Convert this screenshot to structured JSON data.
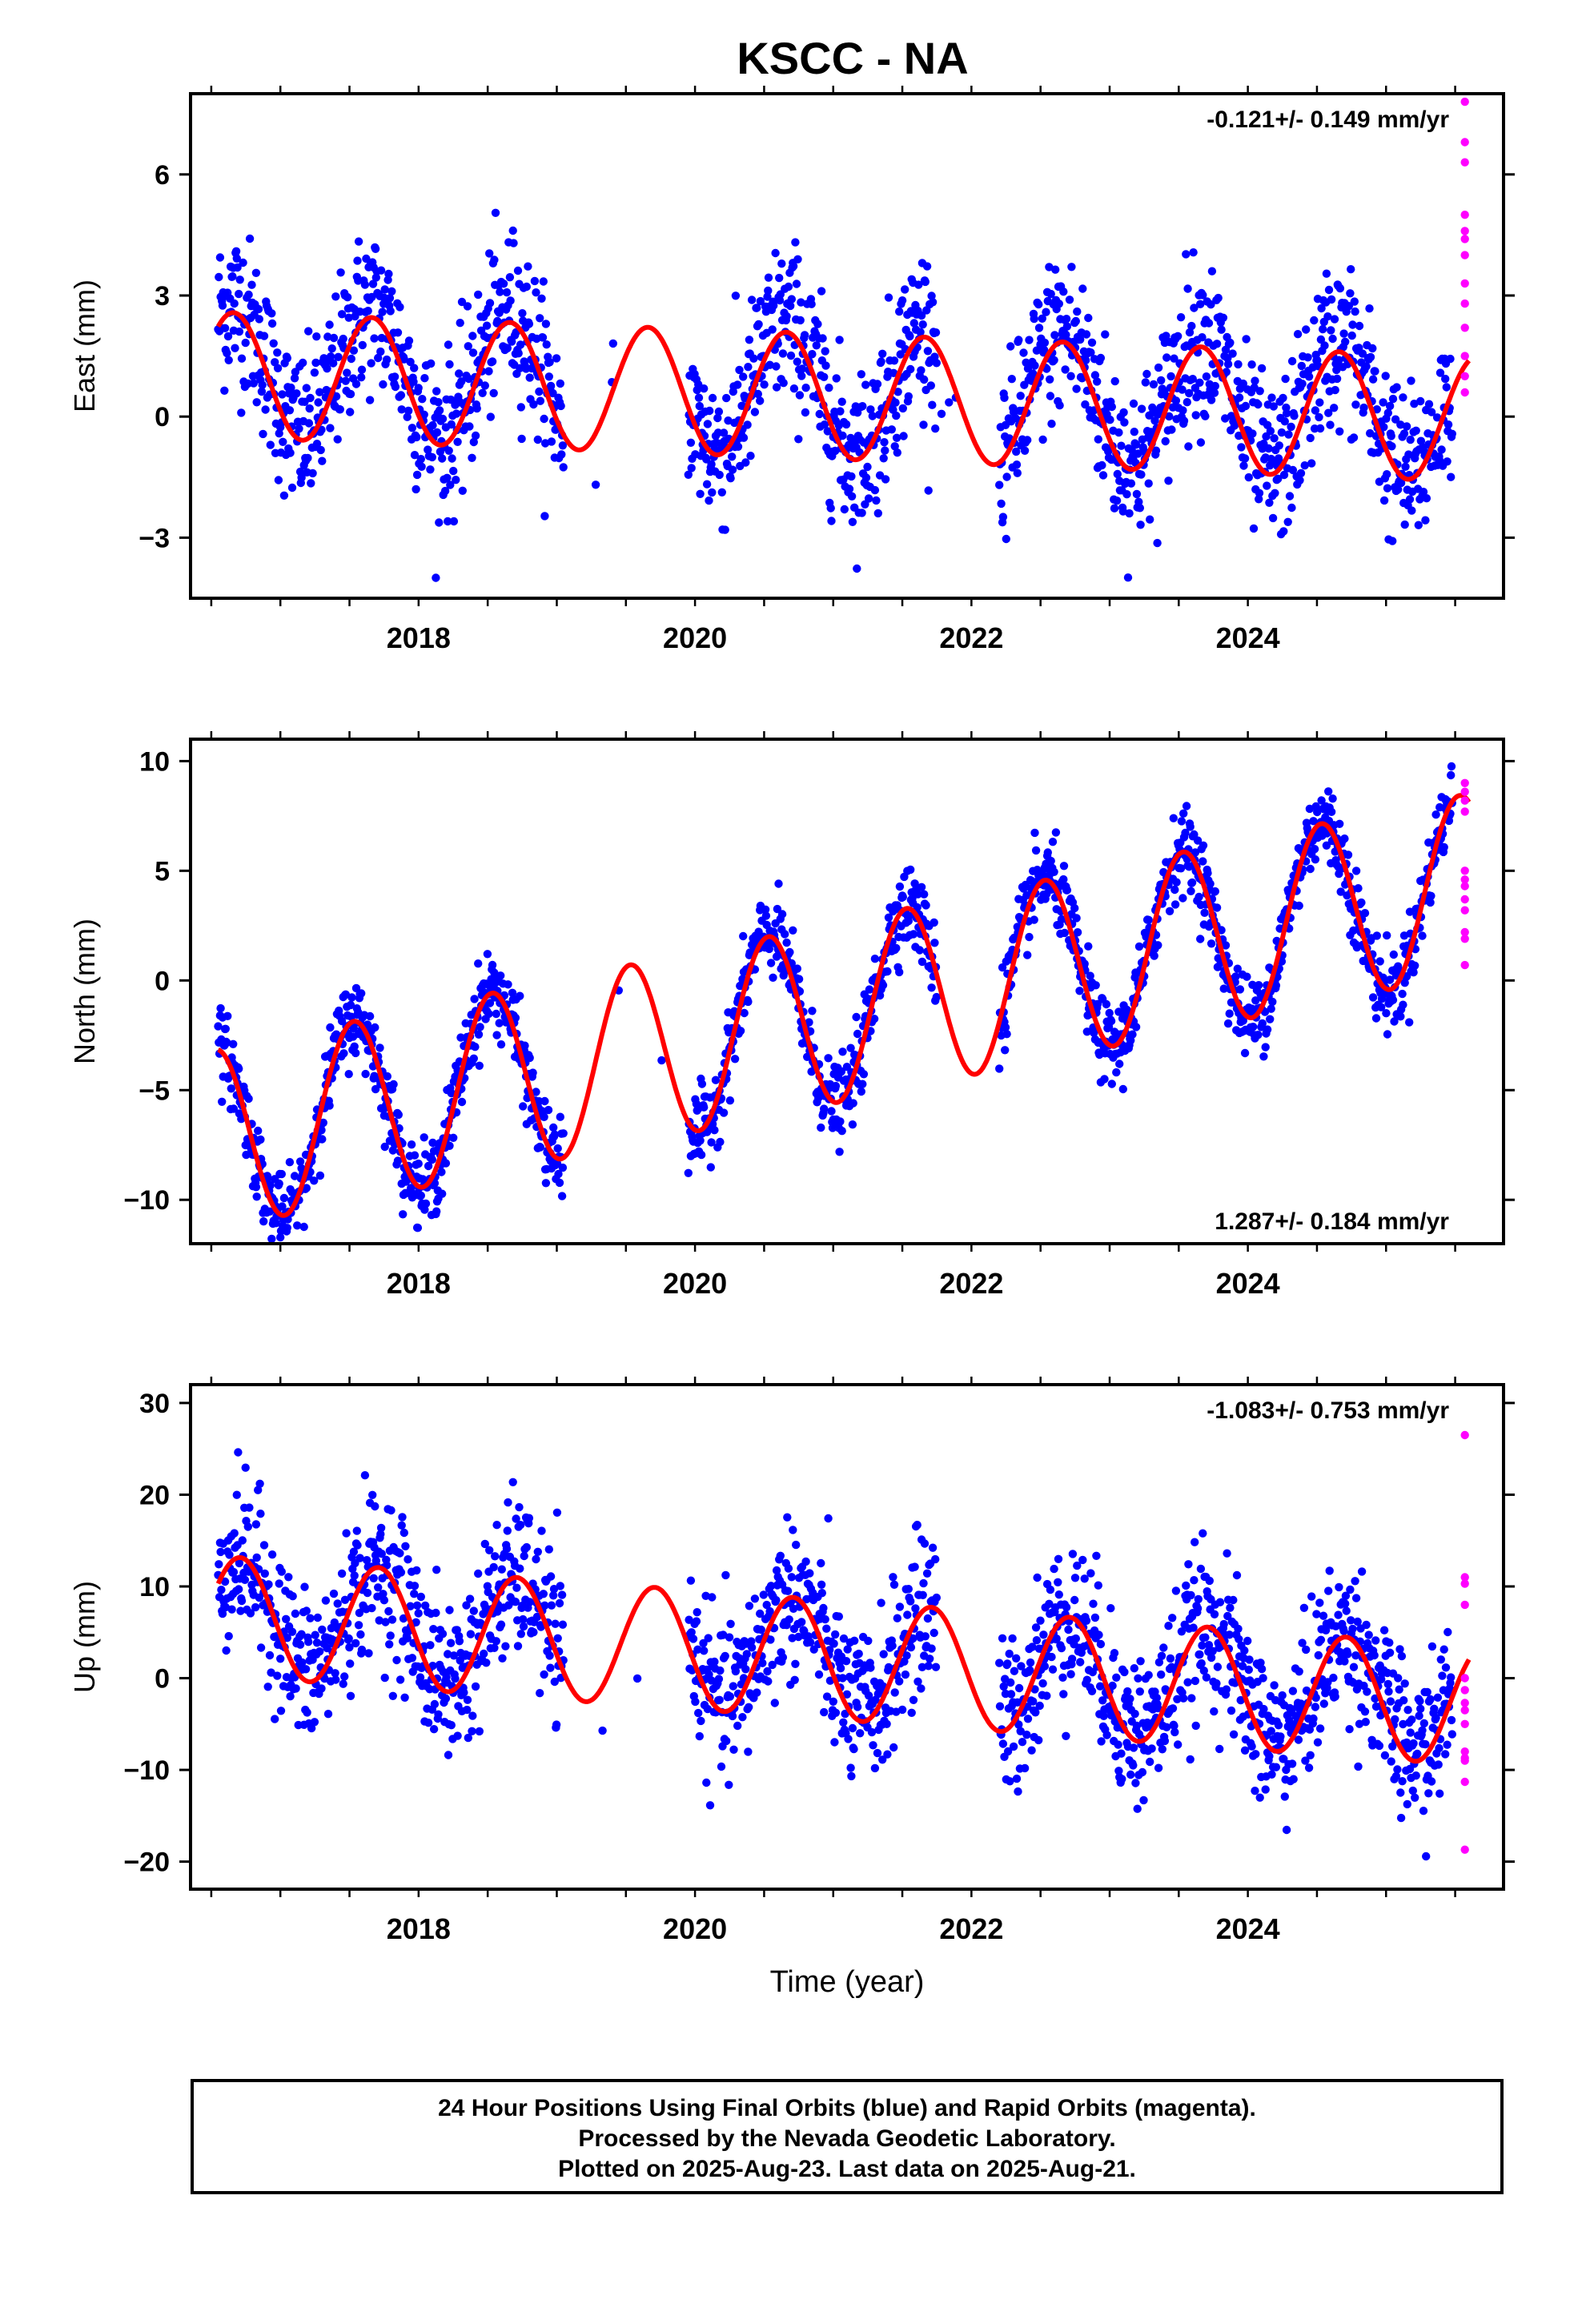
{
  "title": "KSCC - NA",
  "chart_data": [
    {
      "type": "scatter",
      "ylabel": "East (mm)",
      "rate_label": "-0.121+/- 0.149 mm/yr",
      "rate_position": "top-right",
      "xlim": [
        2016.35,
        2025.85
      ],
      "ylim": [
        -4.5,
        8.0
      ],
      "yticks": [
        -3,
        0,
        3,
        6
      ],
      "yticklabels": [
        "−3",
        "0",
        "3",
        "6"
      ],
      "xticks": [
        2018,
        2020,
        2022,
        2024
      ],
      "xticklabels": [
        "2018",
        "2020",
        "2022",
        "2024"
      ],
      "data_range": [
        2016.55,
        2025.48
      ],
      "gaps": [
        [
          2019.05,
          2019.95
        ],
        [
          2021.75,
          2022.2
        ]
      ],
      "series": [
        {
          "color": "#0000ff",
          "trend": {
            "mean": 0.7,
            "rate": -0.121,
            "amplitude": 1.6,
            "phase_peak": 0.66,
            "scatter": 1.0
          }
        },
        {
          "color": "#ff00ff",
          "x": [
            2025.57,
            2025.57,
            2025.57,
            2025.57,
            2025.57,
            2025.57,
            2025.57,
            2025.57,
            2025.57,
            2025.57,
            2025.57,
            2025.57,
            2025.57
          ],
          "y": [
            7.8,
            6.8,
            6.3,
            5.0,
            4.6,
            4.4,
            4.0,
            3.3,
            2.8,
            2.2,
            1.5,
            1.0,
            0.6
          ]
        },
        {
          "color": "#ff0000",
          "name_hidden": "model",
          "model": {
            "mean": 0.5,
            "rate": -0.121,
            "amplitude": 1.55,
            "phase_peak": 0.66
          }
        }
      ]
    },
    {
      "type": "scatter",
      "ylabel": "North (mm)",
      "rate_label": "1.287+/- 0.184 mm/yr",
      "rate_position": "bottom-right",
      "xlim": [
        2016.35,
        2025.85
      ],
      "ylim": [
        -12.0,
        11.0
      ],
      "yticks": [
        -10,
        -5,
        0,
        5,
        10
      ],
      "yticklabels": [
        "−10",
        "−5",
        "0",
        "5",
        "10"
      ],
      "xticks": [
        2018,
        2020,
        2022,
        2024
      ],
      "xticklabels": [
        "2018",
        "2020",
        "2022",
        "2024"
      ],
      "data_range": [
        2016.55,
        2025.48
      ],
      "gaps": [
        [
          2019.05,
          2019.95
        ],
        [
          2021.75,
          2022.2
        ]
      ],
      "series": [
        {
          "color": "#0000ff",
          "trend": {
            "mean": -1.5,
            "rate": 1.287,
            "amplitude": 4.2,
            "phase_peak": 0.53,
            "scatter": 0.9
          }
        },
        {
          "color": "#ff00ff",
          "x": [
            2025.57,
            2025.57,
            2025.57,
            2025.57,
            2025.57,
            2025.57,
            2025.57,
            2025.57,
            2025.57,
            2025.57,
            2025.57,
            2025.57
          ],
          "y": [
            9.0,
            8.6,
            8.2,
            7.7,
            5.0,
            4.6,
            4.3,
            3.7,
            3.2,
            2.2,
            1.9,
            0.7
          ]
        },
        {
          "color": "#ff0000",
          "model": {
            "mean": -1.5,
            "rate": 1.287,
            "amplitude": 4.1,
            "phase_peak": 0.53
          }
        }
      ]
    },
    {
      "type": "scatter",
      "ylabel": "Up (mm)",
      "xlabel": "Time (year)",
      "rate_label": "-1.083+/- 0.753 mm/yr",
      "rate_position": "top-right",
      "xlim": [
        2016.35,
        2025.85
      ],
      "ylim": [
        -23.0,
        32.0
      ],
      "yticks": [
        -20,
        -10,
        0,
        10,
        20,
        30
      ],
      "yticklabels": [
        "−20",
        "−10",
        "0",
        "10",
        "20",
        "30"
      ],
      "xticks": [
        2018,
        2020,
        2022,
        2024
      ],
      "xticklabels": [
        "2018",
        "2020",
        "2022",
        "2024"
      ],
      "data_range": [
        2016.55,
        2025.48
      ],
      "gaps": [
        [
          2019.05,
          2019.95
        ],
        [
          2021.75,
          2022.2
        ]
      ],
      "series": [
        {
          "color": "#0000ff",
          "trend": {
            "mean": 2.5,
            "rate": -1.083,
            "amplitude": 6.0,
            "phase_peak": 0.71,
            "scatter": 4.2
          }
        },
        {
          "color": "#ff00ff",
          "x": [
            2025.57,
            2025.57,
            2025.57,
            2025.57,
            2025.57,
            2025.57,
            2025.57,
            2025.57,
            2025.57,
            2025.57,
            2025.57,
            2025.57,
            2025.57,
            2025.57
          ],
          "y": [
            26.5,
            11.0,
            10.3,
            8.0,
            0.0,
            -1.3,
            -2.7,
            -3.5,
            -5.0,
            -8.0,
            -8.7,
            -9.0,
            -11.3,
            -18.7
          ]
        },
        {
          "color": "#ff0000",
          "model": {
            "mean": 2.0,
            "rate": -1.083,
            "amplitude": 6.5,
            "phase_peak": 0.71
          }
        }
      ]
    }
  ],
  "footer": {
    "line1": "24 Hour Positions Using Final Orbits (blue) and Rapid Orbits (magenta).",
    "line2": "Processed by the Nevada Geodetic Laboratory.",
    "line3": "Plotted on 2025-Aug-23. Last data on 2025-Aug-21."
  }
}
